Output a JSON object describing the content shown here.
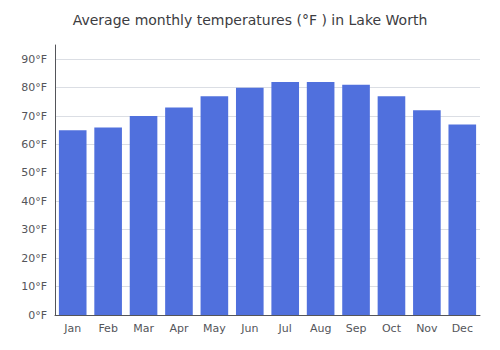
{
  "chart_data": {
    "type": "bar",
    "title": "Average monthly temperatures (°F ) in Lake Worth",
    "categories": [
      "Jan",
      "Feb",
      "Mar",
      "Apr",
      "May",
      "Jun",
      "Jul",
      "Aug",
      "Sep",
      "Oct",
      "Nov",
      "Dec"
    ],
    "values": [
      65,
      66,
      70,
      73,
      77,
      80,
      82,
      82,
      81,
      77,
      72,
      67
    ],
    "ylim": [
      0,
      95
    ],
    "yticks": [
      {
        "value": 0,
        "label": "0°F"
      },
      {
        "value": 10,
        "label": "10°F"
      },
      {
        "value": 20,
        "label": "20°F"
      },
      {
        "value": 30,
        "label": "30°F"
      },
      {
        "value": 40,
        "label": "40°F"
      },
      {
        "value": 50,
        "label": "50°F"
      },
      {
        "value": 60,
        "label": "60°F"
      },
      {
        "value": 70,
        "label": "70°F"
      },
      {
        "value": 80,
        "label": "80°F"
      },
      {
        "value": 90,
        "label": "90°F"
      }
    ],
    "grid": true
  }
}
